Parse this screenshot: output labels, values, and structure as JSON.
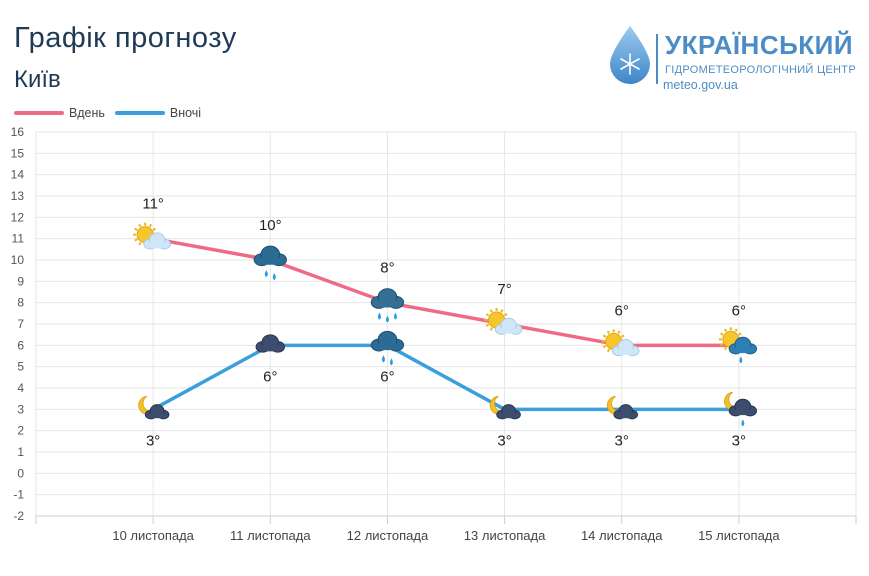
{
  "title": "Графік прогнозу",
  "city": "Київ",
  "logo": {
    "line1": "УКРАЇНСЬКИЙ",
    "line2": "ГІДРОМЕТЕОРОЛОГІЧНИЙ ЦЕНТР",
    "line3": "meteo.gov.ua",
    "icon": "water-drop-snowflake-icon"
  },
  "colors": {
    "day": "#ef6b84",
    "night": "#3a9fdc",
    "grid": "#e6e6e6"
  },
  "chart_data": {
    "type": "line",
    "categories": [
      "10 листопада",
      "11 листопада",
      "12 листопада",
      "13 листопада",
      "14 листопада",
      "15 листопада"
    ],
    "series": [
      {
        "name": "Вдень",
        "values": [
          11,
          10,
          8,
          7,
          6,
          6
        ],
        "labels": [
          "11°",
          "10°",
          "8°",
          "7°",
          "6°",
          "6°"
        ],
        "icons": [
          "sun-cloud-icon",
          "cloud-rain-icon",
          "cloud-heavy-rain-icon",
          "sun-cloud-icon",
          "sun-cloud-icon",
          "sun-cloud-rain-icon"
        ]
      },
      {
        "name": "Вночі",
        "values": [
          3,
          6,
          6,
          3,
          3,
          3
        ],
        "labels": [
          "3°",
          "6°",
          "6°",
          "3°",
          "3°",
          "3°"
        ],
        "icons": [
          "moon-cloud-icon",
          "cloud-icon",
          "cloud-rain-icon",
          "moon-cloud-icon",
          "moon-cloud-icon",
          "moon-cloud-rain-icon"
        ]
      }
    ],
    "ylim": [
      -2,
      16
    ],
    "yticks": [
      16,
      15,
      14,
      13,
      12,
      11,
      10,
      9,
      8,
      7,
      6,
      5,
      4,
      3,
      2,
      1,
      0,
      -1,
      -2
    ],
    "grid": true,
    "legend": "top-left"
  }
}
